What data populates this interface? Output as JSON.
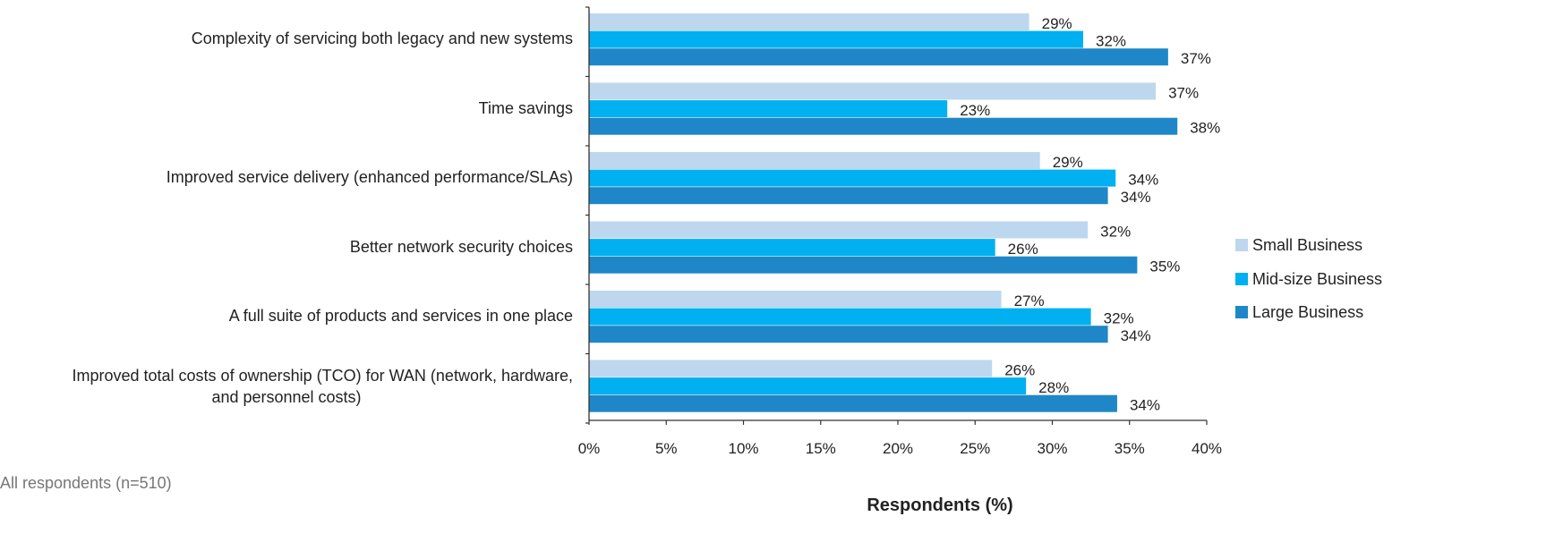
{
  "chart_data": {
    "type": "bar",
    "orientation": "horizontal",
    "categories": [
      "Complexity of servicing both legacy and new systems",
      "Time savings",
      "Improved service delivery (enhanced performance/SLAs)",
      "Better network security choices",
      "A full suite of products and services in one place",
      "Improved total costs of ownership (TCO) for WAN (network, hardware, and personnel costs)"
    ],
    "category_lines": [
      [
        "Complexity of servicing both legacy and new systems"
      ],
      [
        "Time savings"
      ],
      [
        "Improved service delivery (enhanced performance/SLAs)"
      ],
      [
        "Better network security choices"
      ],
      [
        "A full suite of products and services in one place"
      ],
      [
        "Improved total costs of ownership (TCO) for WAN (network, hardware,",
        "and personnel costs)"
      ]
    ],
    "series": [
      {
        "name": "Small Business",
        "color": "#bdd7ee",
        "values": [
          28.5,
          36.7,
          29.2,
          32.3,
          26.7,
          26.1
        ],
        "labels": [
          "29%",
          "37%",
          "29%",
          "32%",
          "27%",
          "26%"
        ]
      },
      {
        "name": "Mid-size Business",
        "color": "#00b0f0",
        "values": [
          32.0,
          23.2,
          34.1,
          26.3,
          32.5,
          28.3
        ],
        "labels": [
          "32%",
          "23%",
          "34%",
          "26%",
          "32%",
          "28%"
        ]
      },
      {
        "name": "Large Business",
        "color": "#1f87c8",
        "values": [
          37.5,
          38.1,
          33.6,
          35.5,
          33.6,
          34.2
        ],
        "labels": [
          "37%",
          "38%",
          "34%",
          "35%",
          "34%",
          "34%"
        ]
      }
    ],
    "xlim": [
      0,
      40
    ],
    "xticks": [
      "0%",
      "5%",
      "10%",
      "15%",
      "20%",
      "25%",
      "30%",
      "35%",
      "40%"
    ],
    "xlabel": "Respondents (%)",
    "legend_position": "right",
    "grid": false
  },
  "footnote": "All respondents (n=510)"
}
